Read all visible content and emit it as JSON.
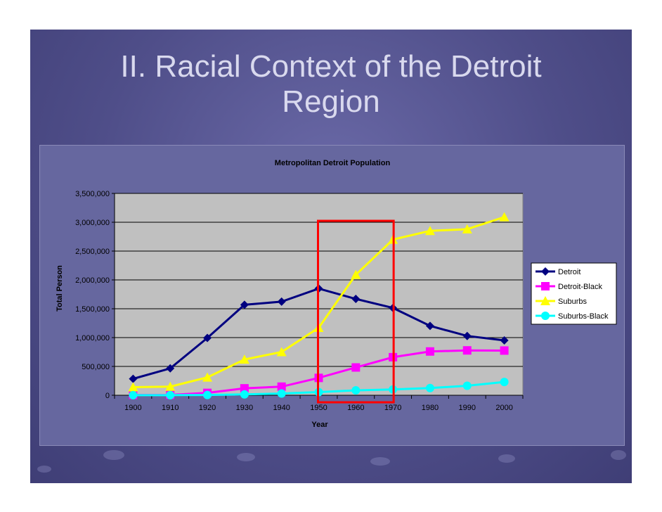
{
  "slide": {
    "title_line1": "II. Racial Context of the Detroit",
    "title_line2": "Region"
  },
  "colors": {
    "detroit": "#000080",
    "detroit_black": "#ff00ff",
    "suburbs": "#ffff00",
    "suburbs_black": "#00ffff",
    "highlight": "#ff0000",
    "plot_bg": "#c0c0c0"
  },
  "chart_data": {
    "type": "line",
    "title": "Metropolitan Detroit Population",
    "xlabel": "Year",
    "ylabel": "Total Person",
    "ylim": [
      0,
      3500000
    ],
    "ytick_labels": [
      "0",
      "500,000",
      "1,000,000",
      "1,500,000",
      "2,000,000",
      "2,500,000",
      "3,000,000",
      "3,500,000"
    ],
    "ytick_values": [
      0,
      500000,
      1000000,
      1500000,
      2000000,
      2500000,
      3000000,
      3500000
    ],
    "categories": [
      "1900",
      "1910",
      "1920",
      "1930",
      "1940",
      "1950",
      "1960",
      "1970",
      "1980",
      "1990",
      "2000"
    ],
    "legend_position": "right",
    "highlight_range": [
      "1950",
      "1970"
    ],
    "series": [
      {
        "name": "Detroit",
        "color_key": "detroit",
        "marker": "diamond",
        "values": [
          285000,
          466000,
          994000,
          1569000,
          1623000,
          1850000,
          1670000,
          1514000,
          1203000,
          1028000,
          951000
        ]
      },
      {
        "name": "Detroit-Black",
        "color_key": "detroit_black",
        "marker": "square",
        "values": [
          4000,
          6000,
          41000,
          120000,
          149000,
          301000,
          482000,
          660000,
          759000,
          778000,
          775000
        ]
      },
      {
        "name": "Suburbs",
        "color_key": "suburbs",
        "marker": "triangle",
        "values": [
          140000,
          150000,
          310000,
          620000,
          750000,
          1170000,
          2090000,
          2700000,
          2850000,
          2880000,
          3090000
        ]
      },
      {
        "name": "Suburbs-Black",
        "color_key": "suburbs_black",
        "marker": "circle",
        "values": [
          1000,
          2000,
          5000,
          15000,
          30000,
          55000,
          85000,
          100000,
          125000,
          165000,
          230000
        ]
      }
    ]
  }
}
